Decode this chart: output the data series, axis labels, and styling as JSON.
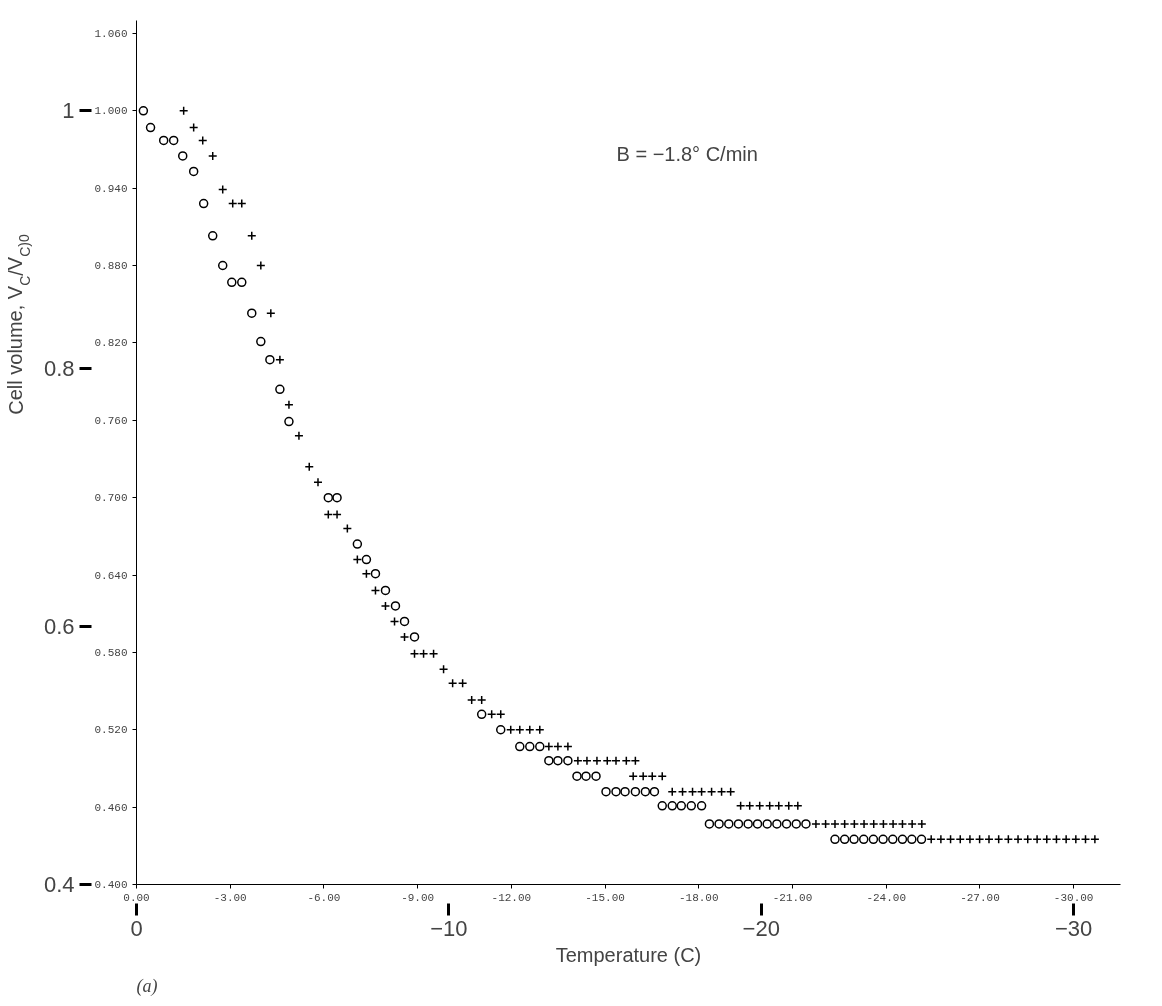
{
  "chart_data": {
    "type": "scatter",
    "xlabel": "Temperature (C)",
    "ylabel": "Cell volume, V$_{C}$/V$_{C)0}$",
    "annotations": [
      "B = −1.8° C/min",
      "(a)"
    ],
    "xlim": [
      0,
      -31.5
    ],
    "xticks": [
      {
        "value": 0,
        "label": "0"
      },
      {
        "value": -10,
        "label": "−10"
      },
      {
        "value": -20,
        "label": "−20"
      },
      {
        "value": -30,
        "label": "−30"
      }
    ],
    "x2lim": [
      0,
      -31.5
    ],
    "x2ticks": [
      {
        "value": 0,
        "label": "0.00"
      },
      {
        "value": -3,
        "label": "-3.00"
      },
      {
        "value": -6,
        "label": "-6.00"
      },
      {
        "value": -9,
        "label": "-9.00"
      },
      {
        "value": -12,
        "label": "-12.00"
      },
      {
        "value": -15,
        "label": "-15.00"
      },
      {
        "value": -18,
        "label": "-18.00"
      },
      {
        "value": -21,
        "label": "-21.00"
      },
      {
        "value": -24,
        "label": "-24.00"
      },
      {
        "value": -27,
        "label": "-27.00"
      },
      {
        "value": -30,
        "label": "-30.00"
      }
    ],
    "ylim": [
      0.4,
      1.07
    ],
    "yticks": [
      0.4,
      0.6,
      0.8,
      1.0
    ],
    "y2lim": [
      0.4,
      1.07
    ],
    "y2ticks": [
      {
        "value": 0.4,
        "label": "0.400"
      },
      {
        "value": 0.46,
        "label": "0.460"
      },
      {
        "value": 0.52,
        "label": "0.520"
      },
      {
        "value": 0.58,
        "label": "0.580"
      },
      {
        "value": 0.64,
        "label": "0.640"
      },
      {
        "value": 0.7,
        "label": "0.700"
      },
      {
        "value": 0.76,
        "label": "0.760"
      },
      {
        "value": 0.82,
        "label": "0.820"
      },
      {
        "value": 0.88,
        "label": "0.880"
      },
      {
        "value": 0.94,
        "label": "0.940"
      },
      {
        "value": 1.0,
        "label": "1.000"
      },
      {
        "value": 1.06,
        "label": "1.060"
      }
    ],
    "grid": false,
    "series": [
      {
        "color": "#000000",
        "marker": "circle",
        "x": [
          -0.22,
          -0.45,
          -0.87,
          -1.19,
          -1.48,
          -1.83,
          -2.15,
          -2.44,
          -2.76,
          -3.05,
          -3.37,
          -3.69,
          -3.98,
          -4.27,
          -4.59,
          -4.88,
          -6.14,
          -6.42,
          -7.07,
          -7.36,
          -7.65,
          -7.97,
          -8.29,
          -8.58,
          -8.9,
          -11.05,
          -11.66,
          -12.27,
          -12.59,
          -12.91,
          -13.2,
          -13.49,
          -13.81,
          -14.1,
          -14.39,
          -14.71,
          -15.03,
          -15.35,
          -15.64,
          -15.97,
          -16.29,
          -16.58,
          -16.83,
          -17.15,
          -17.44,
          -17.76,
          -18.09,
          -18.34,
          -18.65,
          -18.96,
          -19.27,
          -19.58,
          -19.88,
          -20.19,
          -20.5,
          -20.81,
          -21.12,
          -21.43,
          -22.36,
          -22.67,
          -22.97,
          -23.28,
          -23.59,
          -23.9,
          -24.21,
          -24.52,
          -24.82,
          -25.13
        ],
        "values": [
          1.0,
          0.987,
          0.977,
          0.977,
          0.965,
          0.953,
          0.928,
          0.903,
          0.88,
          0.867,
          0.867,
          0.843,
          0.821,
          0.807,
          0.784,
          0.759,
          0.7,
          0.7,
          0.664,
          0.652,
          0.641,
          0.628,
          0.616,
          0.604,
          0.592,
          0.532,
          0.52,
          0.507,
          0.507,
          0.507,
          0.496,
          0.496,
          0.496,
          0.484,
          0.484,
          0.484,
          0.472,
          0.472,
          0.472,
          0.472,
          0.472,
          0.472,
          0.461,
          0.461,
          0.461,
          0.461,
          0.461,
          0.447,
          0.447,
          0.447,
          0.447,
          0.447,
          0.447,
          0.447,
          0.447,
          0.447,
          0.447,
          0.447,
          0.435,
          0.435,
          0.435,
          0.435,
          0.435,
          0.435,
          0.435,
          0.435,
          0.435,
          0.435
        ]
      },
      {
        "color": "#000000",
        "marker": "cross",
        "x": [
          -1.51,
          -1.83,
          -2.12,
          -2.44,
          -2.76,
          -3.08,
          -3.37,
          -3.69,
          -3.98,
          -4.3,
          -4.59,
          -4.88,
          -5.2,
          -5.53,
          -5.81,
          -6.14,
          -6.42,
          -6.75,
          -7.07,
          -7.36,
          -7.65,
          -7.97,
          -8.26,
          -8.58,
          -8.9,
          -9.19,
          -9.51,
          -9.83,
          -10.12,
          -10.44,
          -10.73,
          -11.05,
          -11.37,
          -11.66,
          -11.98,
          -12.27,
          -12.59,
          -12.91,
          -13.2,
          -13.49,
          -13.81,
          -14.13,
          -14.42,
          -14.74,
          -15.07,
          -15.35,
          -15.68,
          -15.97,
          -15.9,
          -16.22,
          -16.51,
          -16.83,
          -17.15,
          -17.48,
          -17.8,
          -18.09,
          -18.41,
          -18.73,
          -19.02,
          -19.34,
          -19.63,
          -19.95,
          -20.27,
          -20.56,
          -20.88,
          -21.17,
          -21.75,
          -22.06,
          -22.36,
          -22.67,
          -22.98,
          -23.29,
          -23.6,
          -23.91,
          -24.22,
          -24.52,
          -24.83,
          -25.14,
          -25.44,
          -25.75,
          -26.06,
          -26.37,
          -26.68,
          -26.99,
          -27.29,
          -27.6,
          -27.91,
          -28.22,
          -28.53,
          -28.83,
          -29.14,
          -29.45,
          -29.76,
          -30.07,
          -30.38,
          -30.68
        ],
        "values": [
          1.0,
          0.987,
          0.977,
          0.965,
          0.939,
          0.928,
          0.928,
          0.903,
          0.88,
          0.843,
          0.807,
          0.772,
          0.748,
          0.724,
          0.712,
          0.687,
          0.687,
          0.676,
          0.652,
          0.641,
          0.628,
          0.616,
          0.604,
          0.592,
          0.579,
          0.579,
          0.579,
          0.567,
          0.556,
          0.556,
          0.543,
          0.543,
          0.532,
          0.532,
          0.52,
          0.52,
          0.52,
          0.52,
          0.507,
          0.507,
          0.507,
          0.496,
          0.496,
          0.496,
          0.496,
          0.496,
          0.496,
          0.496,
          0.484,
          0.484,
          0.484,
          0.484,
          0.472,
          0.472,
          0.472,
          0.472,
          0.472,
          0.472,
          0.472,
          0.461,
          0.461,
          0.461,
          0.461,
          0.461,
          0.461,
          0.461,
          0.447,
          0.447,
          0.447,
          0.447,
          0.447,
          0.447,
          0.447,
          0.447,
          0.447,
          0.447,
          0.447,
          0.447,
          0.435,
          0.435,
          0.435,
          0.435,
          0.435,
          0.435,
          0.435,
          0.435,
          0.435,
          0.435,
          0.435,
          0.435,
          0.435,
          0.435,
          0.435,
          0.435,
          0.435,
          0.435
        ]
      }
    ]
  }
}
